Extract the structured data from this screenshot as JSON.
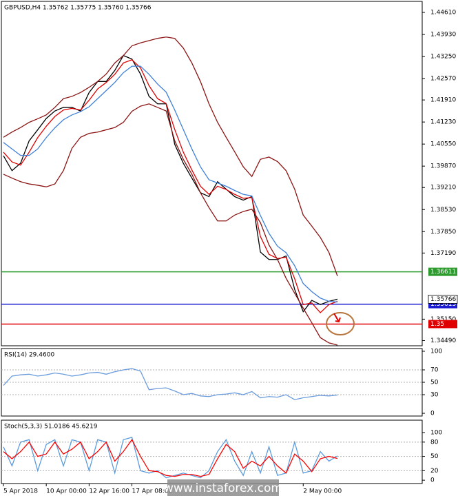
{
  "chart_data": [
    {
      "type": "line",
      "title": "GBPUSD,H4  1.35762 1.35775 1.35760 1.35766",
      "ylim": [
        1.3433,
        1.4495
      ],
      "yticks": [
        {
          "value": 1.4461,
          "label": "1.44610"
        },
        {
          "value": 1.4393,
          "label": "1.43930"
        },
        {
          "value": 1.4325,
          "label": "1.43250"
        },
        {
          "value": 1.4257,
          "label": "1.42570"
        },
        {
          "value": 1.4191,
          "label": "1.41910"
        },
        {
          "value": 1.4123,
          "label": "1.41230"
        },
        {
          "value": 1.4055,
          "label": "1.40550"
        },
        {
          "value": 1.3987,
          "label": "1.39870"
        },
        {
          "value": 1.3921,
          "label": "1.39210"
        },
        {
          "value": 1.3853,
          "label": "1.38530"
        },
        {
          "value": 1.3785,
          "label": "1.37850"
        },
        {
          "value": 1.3719,
          "label": "1.37190"
        },
        {
          "value": 1.3515,
          "label": "1.35150"
        },
        {
          "value": 1.3449,
          "label": "1.34490"
        }
      ],
      "grid": false,
      "series": [
        {
          "color": "#000000",
          "show_last_value": true,
          "values": [
            1.4019,
            1.3973,
            1.3996,
            1.4065,
            1.4099,
            1.4134,
            1.4157,
            1.4168,
            1.4168,
            1.4157,
            1.4214,
            1.4248,
            1.4248,
            1.4282,
            1.4328,
            1.4317,
            1.4271,
            1.4202,
            1.4179,
            1.4179,
            1.4054,
            1.3996,
            1.395,
            1.3905,
            1.3893,
            1.3939,
            1.3916,
            1.3893,
            1.3882,
            1.3893,
            1.3722,
            1.3699,
            1.3699,
            1.371,
            1.3607,
            1.3538,
            1.3573,
            1.356,
            1.357,
            1.35766
          ]
        },
        {
          "color": "#e00000",
          "values": [
            1.403,
            1.4,
            1.399,
            1.403,
            1.4075,
            1.411,
            1.414,
            1.416,
            1.4165,
            1.416,
            1.419,
            1.4225,
            1.4245,
            1.427,
            1.4305,
            1.4315,
            1.429,
            1.4235,
            1.4195,
            1.418,
            1.41,
            1.403,
            1.3975,
            1.3925,
            1.39,
            1.3925,
            1.3915,
            1.39,
            1.3888,
            1.389,
            1.377,
            1.3715,
            1.3702,
            1.3706,
            1.364,
            1.356,
            1.3565,
            1.3535,
            1.356,
            1.357
          ]
        },
        {
          "color": "#3f7fd9",
          "values": [
            1.406,
            1.404,
            1.402,
            1.402,
            1.404,
            1.4075,
            1.4105,
            1.413,
            1.4145,
            1.4155,
            1.417,
            1.4195,
            1.422,
            1.4245,
            1.4275,
            1.4295,
            1.4295,
            1.427,
            1.424,
            1.4215,
            1.416,
            1.41,
            1.404,
            1.3985,
            1.3945,
            1.3935,
            1.3925,
            1.3912,
            1.39,
            1.3895,
            1.3835,
            1.378,
            1.374,
            1.372,
            1.368,
            1.3625,
            1.36,
            1.358,
            1.357,
            1.3568
          ]
        },
        {
          "color": "#8b1414",
          "values": [
            1.4076,
            1.4092,
            1.4106,
            1.4122,
            1.4133,
            1.4145,
            1.4168,
            1.4195,
            1.4202,
            1.4214,
            1.423,
            1.4248,
            1.4271,
            1.4305,
            1.4328,
            1.4358,
            1.4367,
            1.4374,
            1.4381,
            1.4385,
            1.4381,
            1.4351,
            1.4305,
            1.4248,
            1.4179,
            1.4122,
            1.4076,
            1.4031,
            1.3985,
            1.3955,
            1.4008,
            1.4015,
            1.4001,
            1.3973,
            1.3916,
            1.3836,
            1.3802,
            1.3767,
            1.3721,
            1.3648
          ]
        },
        {
          "color": "#8b1414",
          "values": [
            1.3962,
            1.395,
            1.3939,
            1.3932,
            1.3928,
            1.3923,
            1.3932,
            1.3973,
            1.4042,
            1.4076,
            1.4088,
            1.4092,
            1.4099,
            1.4106,
            1.4122,
            1.4156,
            1.4172,
            1.4179,
            1.4168,
            1.4157,
            1.4065,
            1.4008,
            1.3962,
            1.3905,
            1.3859,
            1.3818,
            1.3818,
            1.3836,
            1.3847,
            1.3854,
            1.3813,
            1.3744,
            1.3699,
            1.3641,
            1.3595,
            1.3549,
            1.3504,
            1.3458,
            1.3442,
            1.3435
          ]
        }
      ],
      "levels": [
        {
          "value": 1.36611,
          "color": "#2e9b2e"
        },
        {
          "value": 1.35613,
          "color": "#1c1cd0"
        },
        {
          "value": 1.35,
          "color": "#e00000"
        }
      ]
    },
    {
      "type": "line",
      "title": "RSI(14) 29.4600",
      "ylim": [
        -4.4,
        104.4
      ],
      "yticks": [
        100,
        70,
        50,
        30,
        0
      ],
      "grid": true,
      "series": [
        {
          "color": "#6a9bdc",
          "values": [
            45,
            60,
            62,
            63,
            60,
            62,
            65,
            63,
            60,
            62,
            65,
            66,
            63,
            67,
            70,
            72,
            68,
            38,
            40,
            41,
            36,
            30,
            32,
            28,
            27,
            30,
            31,
            33,
            30,
            35,
            25,
            27,
            26,
            30,
            22,
            25,
            27,
            29,
            28,
            29.46
          ]
        }
      ]
    },
    {
      "type": "line",
      "title": "Stoch(5,3,3) 51.0186 45.6219",
      "ylim": [
        -7,
        126
      ],
      "yticks": [
        100,
        80,
        50,
        20,
        0
      ],
      "grid": true,
      "categories": [
        "5 Apr 2018",
        null,
        null,
        null,
        null,
        "10 Apr 00:00",
        null,
        null,
        null,
        null,
        "12 Apr 16:00",
        null,
        null,
        null,
        null,
        "17 Apr 08:00",
        null,
        null,
        null,
        null,
        null,
        null,
        null,
        null,
        null,
        null,
        null,
        null,
        null,
        null,
        null,
        null,
        null,
        null,
        null,
        "2 May 00:00",
        null,
        null,
        null,
        null
      ],
      "series": [
        {
          "color": "#5b9bdc",
          "values": [
            70,
            30,
            80,
            85,
            20,
            75,
            85,
            30,
            85,
            80,
            20,
            85,
            80,
            15,
            85,
            90,
            20,
            15,
            20,
            5,
            10,
            15,
            10,
            5,
            20,
            60,
            85,
            40,
            10,
            60,
            15,
            70,
            10,
            15,
            80,
            15,
            20,
            60,
            40,
            51.0186
          ]
        },
        {
          "color": "#ff0000",
          "values": [
            60,
            45,
            60,
            80,
            50,
            55,
            80,
            55,
            65,
            80,
            45,
            60,
            80,
            40,
            60,
            85,
            50,
            20,
            18,
            10,
            8,
            12,
            12,
            8,
            12,
            45,
            75,
            60,
            25,
            40,
            30,
            50,
            30,
            15,
            55,
            40,
            18,
            45,
            50,
            45.6219
          ]
        }
      ]
    }
  ],
  "watermark": "www.instaforex.com"
}
